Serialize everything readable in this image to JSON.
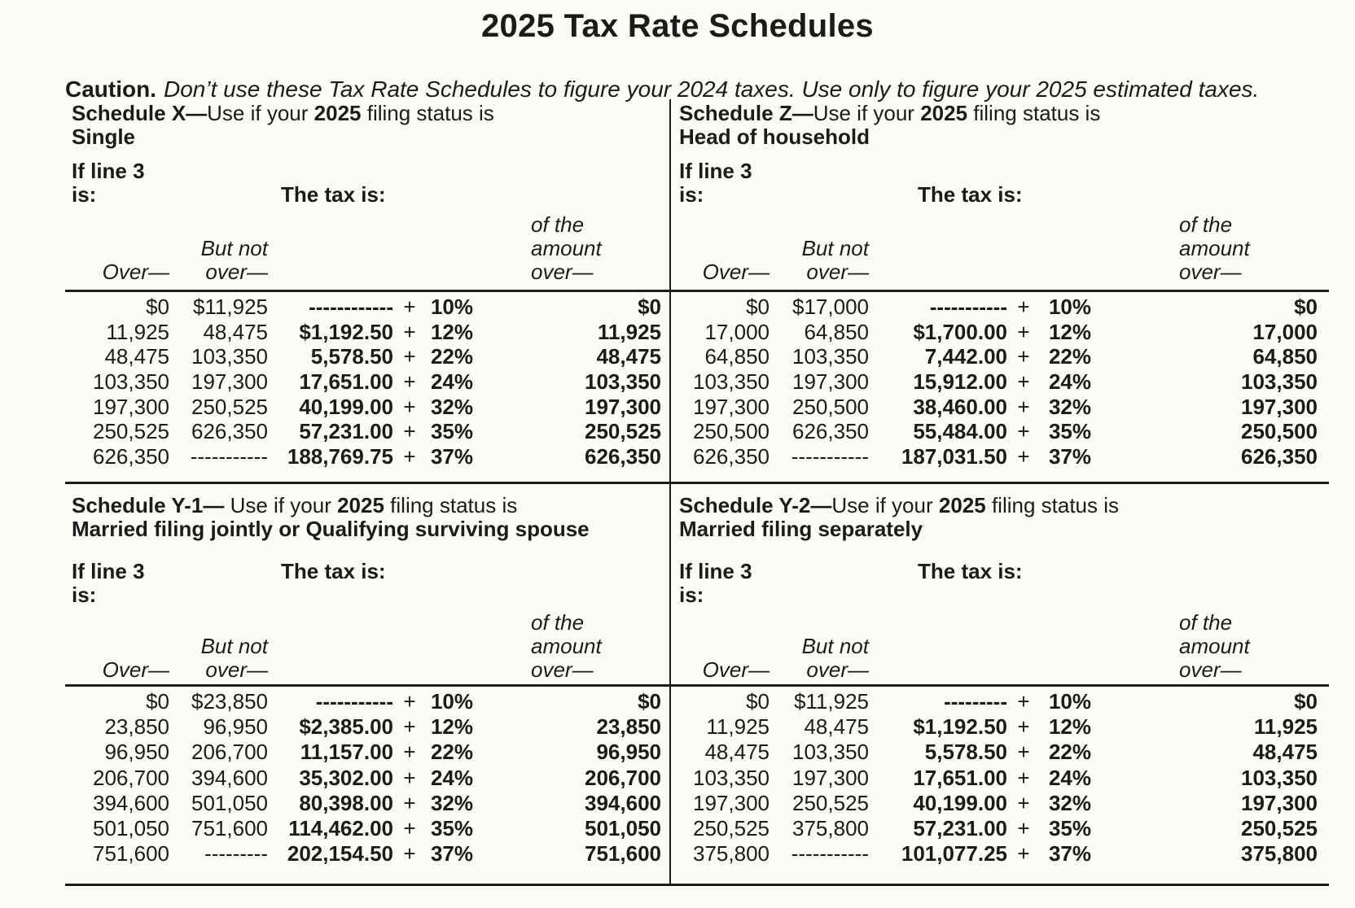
{
  "page": {
    "title": "2025 Tax Rate Schedules",
    "caution_label": "Caution.",
    "caution_text": "Don’t use these Tax Rate Schedules to figure your 2024 taxes. Use only to figure your 2025 estimated taxes."
  },
  "labels": {
    "if_line3": "If line 3",
    "is": "is:",
    "tax_is": "The tax is:",
    "over": "Over—",
    "but_not": "But not",
    "but_not_over": "over—",
    "of_the": "of the",
    "amount": "amount",
    "amount_over": "over—",
    "plus": "+"
  },
  "colors": {
    "ink": "#1b1b19",
    "paper": "#fbfbf8"
  },
  "schedules": [
    {
      "id": "X",
      "title_prefix": "Schedule X—",
      "title_mid": "Use if your ",
      "title_year": "2025",
      "title_suffix": " filing status is",
      "filing_status": "Single",
      "rows": [
        {
          "over": "$0",
          "but_not_over": "$11,925",
          "tax": "------------",
          "rate": "10%",
          "of_amount_over": "$0"
        },
        {
          "over": "11,925",
          "but_not_over": "48,475",
          "tax": "$1,192.50",
          "rate": "12%",
          "of_amount_over": "11,925"
        },
        {
          "over": "48,475",
          "but_not_over": "103,350",
          "tax": "5,578.50",
          "rate": "22%",
          "of_amount_over": "48,475"
        },
        {
          "over": "103,350",
          "but_not_over": "197,300",
          "tax": "17,651.00",
          "rate": "24%",
          "of_amount_over": "103,350"
        },
        {
          "over": "197,300",
          "but_not_over": "250,525",
          "tax": "40,199.00",
          "rate": "32%",
          "of_amount_over": "197,300"
        },
        {
          "over": "250,525",
          "but_not_over": "626,350",
          "tax": "57,231.00",
          "rate": "35%",
          "of_amount_over": "250,525"
        },
        {
          "over": "626,350",
          "but_not_over": "-----------",
          "tax": "188,769.75",
          "rate": "37%",
          "of_amount_over": "626,350"
        }
      ]
    },
    {
      "id": "Z",
      "title_prefix": "Schedule Z—",
      "title_mid": "Use if your ",
      "title_year": "2025",
      "title_suffix": " filing status is",
      "filing_status": "Head of household",
      "rows": [
        {
          "over": "$0",
          "but_not_over": "$17,000",
          "tax": "-----------",
          "rate": "10%",
          "of_amount_over": "$0"
        },
        {
          "over": "17,000",
          "but_not_over": "64,850",
          "tax": "$1,700.00",
          "rate": "12%",
          "of_amount_over": "17,000"
        },
        {
          "over": "64,850",
          "but_not_over": "103,350",
          "tax": "7,442.00",
          "rate": "22%",
          "of_amount_over": "64,850"
        },
        {
          "over": "103,350",
          "but_not_over": "197,300",
          "tax": "15,912.00",
          "rate": "24%",
          "of_amount_over": "103,350"
        },
        {
          "over": "197,300",
          "but_not_over": "250,500",
          "tax": "38,460.00",
          "rate": "32%",
          "of_amount_over": "197,300"
        },
        {
          "over": "250,500",
          "but_not_over": "626,350",
          "tax": "55,484.00",
          "rate": "35%",
          "of_amount_over": "250,500"
        },
        {
          "over": "626,350",
          "but_not_over": "-----------",
          "tax": "187,031.50",
          "rate": "37%",
          "of_amount_over": "626,350"
        }
      ]
    },
    {
      "id": "Y-1",
      "title_prefix": "Schedule Y-1—",
      "title_mid": " Use if your ",
      "title_year": "2025",
      "title_suffix": " filing status is",
      "filing_status": "Married filing jointly or Qualifying surviving spouse",
      "rows": [
        {
          "over": "$0",
          "but_not_over": "$23,850",
          "tax": "-----------",
          "rate": "10%",
          "of_amount_over": "$0"
        },
        {
          "over": "23,850",
          "but_not_over": "96,950",
          "tax": "$2,385.00",
          "rate": "12%",
          "of_amount_over": "23,850"
        },
        {
          "over": "96,950",
          "but_not_over": "206,700",
          "tax": "11,157.00",
          "rate": "22%",
          "of_amount_over": "96,950"
        },
        {
          "over": "206,700",
          "but_not_over": "394,600",
          "tax": "35,302.00",
          "rate": "24%",
          "of_amount_over": "206,700"
        },
        {
          "over": "394,600",
          "but_not_over": "501,050",
          "tax": "80,398.00",
          "rate": "32%",
          "of_amount_over": "394,600"
        },
        {
          "over": "501,050",
          "but_not_over": "751,600",
          "tax": "114,462.00",
          "rate": "35%",
          "of_amount_over": "501,050"
        },
        {
          "over": "751,600",
          "but_not_over": "---------",
          "tax": "202,154.50",
          "rate": "37%",
          "of_amount_over": "751,600"
        }
      ]
    },
    {
      "id": "Y-2",
      "title_prefix": "Schedule Y-2—",
      "title_mid": "Use if your ",
      "title_year": "2025",
      "title_suffix": " filing status is",
      "filing_status": "Married filing separately",
      "rows": [
        {
          "over": "$0",
          "but_not_over": "$11,925",
          "tax": "---------",
          "rate": "10%",
          "of_amount_over": "$0"
        },
        {
          "over": "11,925",
          "but_not_over": "48,475",
          "tax": "$1,192.50",
          "rate": "12%",
          "of_amount_over": "11,925"
        },
        {
          "over": "48,475",
          "but_not_over": "103,350",
          "tax": "5,578.50",
          "rate": "22%",
          "of_amount_over": "48,475"
        },
        {
          "over": "103,350",
          "but_not_over": "197,300",
          "tax": "17,651.00",
          "rate": "24%",
          "of_amount_over": "103,350"
        },
        {
          "over": "197,300",
          "but_not_over": "250,525",
          "tax": "40,199.00",
          "rate": "32%",
          "of_amount_over": "197,300"
        },
        {
          "over": "250,525",
          "but_not_over": "375,800",
          "tax": "57,231.00",
          "rate": "35%",
          "of_amount_over": "250,525"
        },
        {
          "over": "375,800",
          "but_not_over": "-----------",
          "tax": "101,077.25",
          "rate": "37%",
          "of_amount_over": "375,800"
        }
      ]
    }
  ]
}
